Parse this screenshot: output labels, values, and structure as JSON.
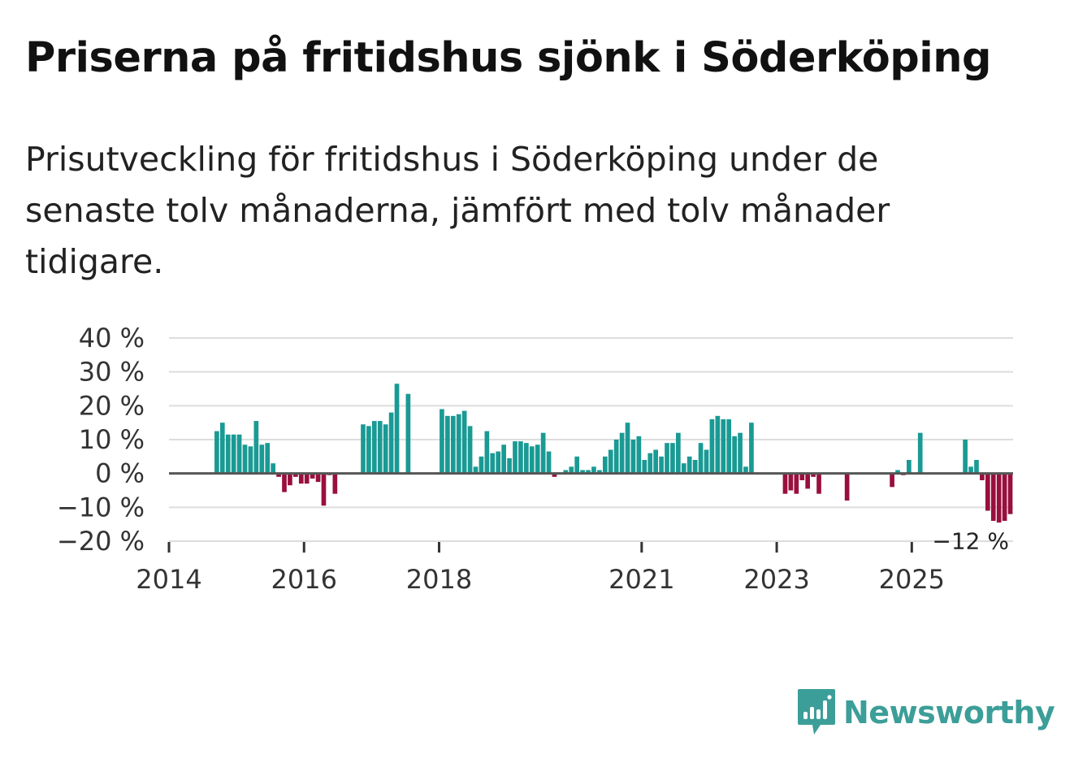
{
  "title": "Priserna på fritidshus sjönk i Söderköping",
  "subtitle": "Prisutveckling för fritidshus i Söderköping under de senaste tolv månaderna, jämfört med tolv månader tidigare.",
  "brand": {
    "name": "Newsworthy"
  },
  "colors": {
    "positive": "#1a9a94",
    "negative": "#990f3d",
    "grid": "#dddddd",
    "zero_line": "#555555",
    "brand": "#3c9e98"
  },
  "chart_data": {
    "type": "bar",
    "y_axis": {
      "ticks": [
        40,
        30,
        20,
        10,
        0,
        -10,
        -20
      ],
      "tick_labels": [
        "40 %",
        "30 %",
        "20 %",
        "10 %",
        "0 %",
        "−10 %",
        "−20 %"
      ],
      "ylim": [
        -20,
        40
      ]
    },
    "x_axis": {
      "labels": [
        "2014",
        "2016",
        "2018",
        "2021",
        "2023",
        "2025"
      ],
      "label_months": [
        0,
        24,
        48,
        84,
        108,
        132
      ],
      "major_tick_months": [
        0,
        24,
        48,
        84,
        108,
        132
      ],
      "domain_months": [
        0,
        150
      ]
    },
    "series": [
      {
        "name": "Prisutveckling",
        "unit": "%",
        "start": "2014-01",
        "values": [
          null,
          null,
          null,
          null,
          null,
          null,
          null,
          null,
          12.5,
          15,
          11.5,
          11.5,
          11.5,
          8.5,
          8,
          15.5,
          8.5,
          9,
          3,
          -1,
          -5.5,
          -3.5,
          -1,
          -3,
          -3,
          -1.5,
          -2.5,
          -9.5,
          -0.5,
          -6,
          null,
          null,
          null,
          null,
          14.5,
          14,
          15.5,
          15.5,
          14.5,
          18,
          26.5,
          0,
          23.5,
          null,
          null,
          null,
          null,
          null,
          19,
          17,
          17,
          17.5,
          18.5,
          14,
          2,
          5,
          12.5,
          6,
          6.5,
          8.5,
          4.5,
          9.5,
          9.5,
          9,
          8,
          8.5,
          12,
          6.5,
          -1,
          0,
          1,
          2,
          5,
          1,
          1,
          2,
          1,
          5,
          7,
          10,
          12,
          15,
          10,
          11,
          4,
          6,
          7,
          5,
          9,
          9,
          12,
          3,
          5,
          4,
          9,
          7,
          16,
          17,
          16,
          16,
          11,
          12,
          2,
          15,
          null,
          null,
          null,
          null,
          null,
          -6,
          -5,
          -6,
          -2,
          -4.5,
          -1,
          -6,
          null,
          null,
          null,
          null,
          -8,
          null,
          null,
          null,
          null,
          null,
          null,
          null,
          -4,
          1,
          -0.5,
          4,
          0,
          12,
          null,
          null,
          null,
          null,
          null,
          null,
          null,
          10,
          2,
          4,
          -2,
          -11,
          -14,
          -14.5,
          -14,
          -12
        ]
      }
    ],
    "end_label": "−12 %"
  }
}
